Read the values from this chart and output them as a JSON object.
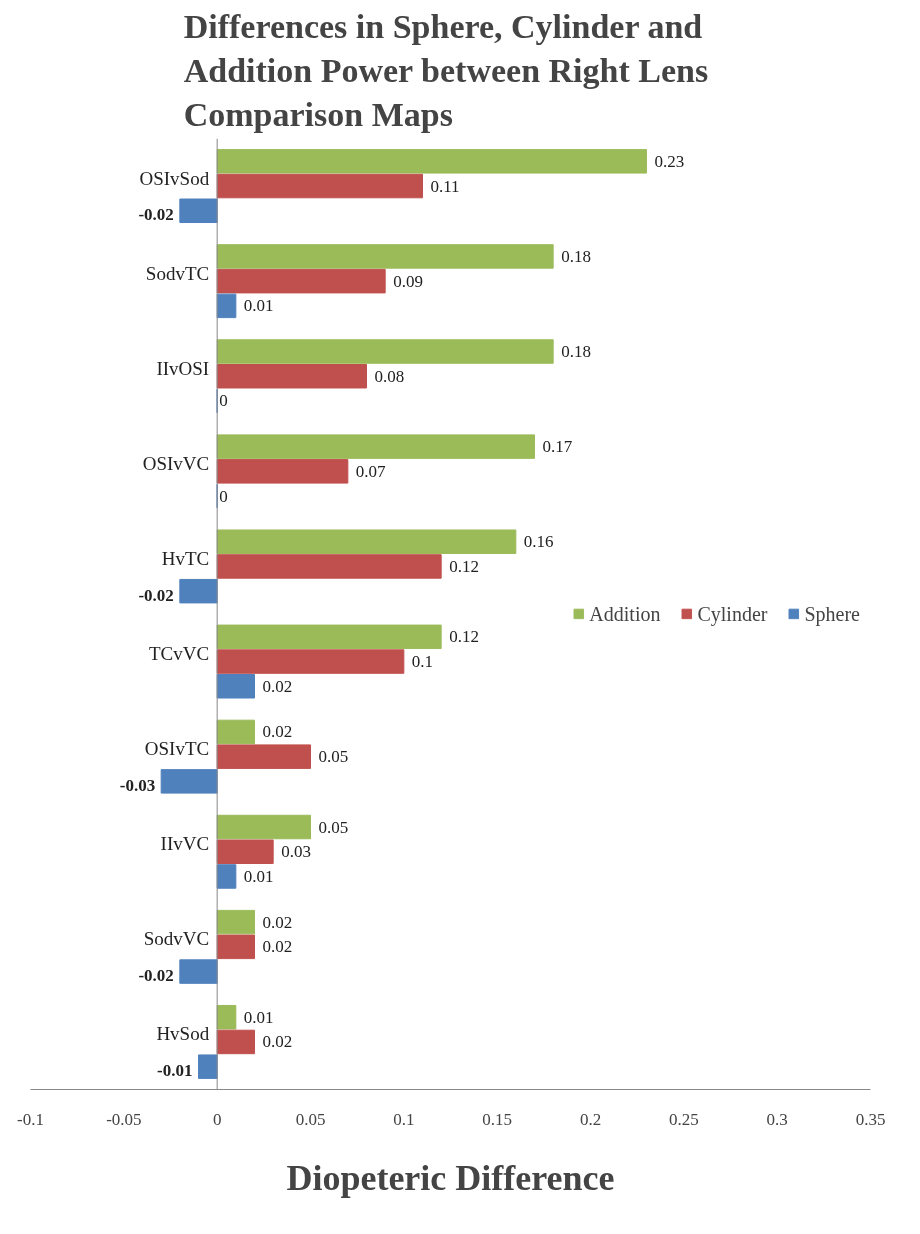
{
  "chart_data": {
    "type": "bar",
    "orientation": "horizontal",
    "title": "Differences in Sphere, Cylinder and Addition Power between Right  Lens Comparison Maps",
    "xlabel": "Diopeteric Difference",
    "categories": [
      "OSIvSod",
      "SodvTC",
      "IIvOSI",
      "OSIvVC",
      "HvTC",
      "TCvVC",
      "OSIvTC",
      "IIvVC",
      "SodvVC",
      "HvSod"
    ],
    "series": [
      {
        "name": "Addition",
        "color": "#9bbb59",
        "values": [
          0.23,
          0.18,
          0.18,
          0.17,
          0.16,
          0.12,
          0.02,
          0.05,
          0.02,
          0.01
        ]
      },
      {
        "name": "Cylinder",
        "color": "#c0504d",
        "values": [
          0.11,
          0.09,
          0.08,
          0.07,
          0.12,
          0.1,
          0.05,
          0.03,
          0.02,
          0.02
        ]
      },
      {
        "name": "Sphere",
        "color": "#4f81bd",
        "values": [
          -0.02,
          0.01,
          0,
          0,
          -0.02,
          0.02,
          -0.03,
          0.01,
          -0.02,
          -0.01
        ]
      }
    ],
    "xlim": [
      -0.1,
      0.35
    ],
    "xticks": [
      -0.1,
      -0.05,
      0,
      0.05,
      0.1,
      0.15,
      0.2,
      0.25,
      0.3,
      0.35
    ],
    "grid": false,
    "legend": "right",
    "data_labels": true
  }
}
